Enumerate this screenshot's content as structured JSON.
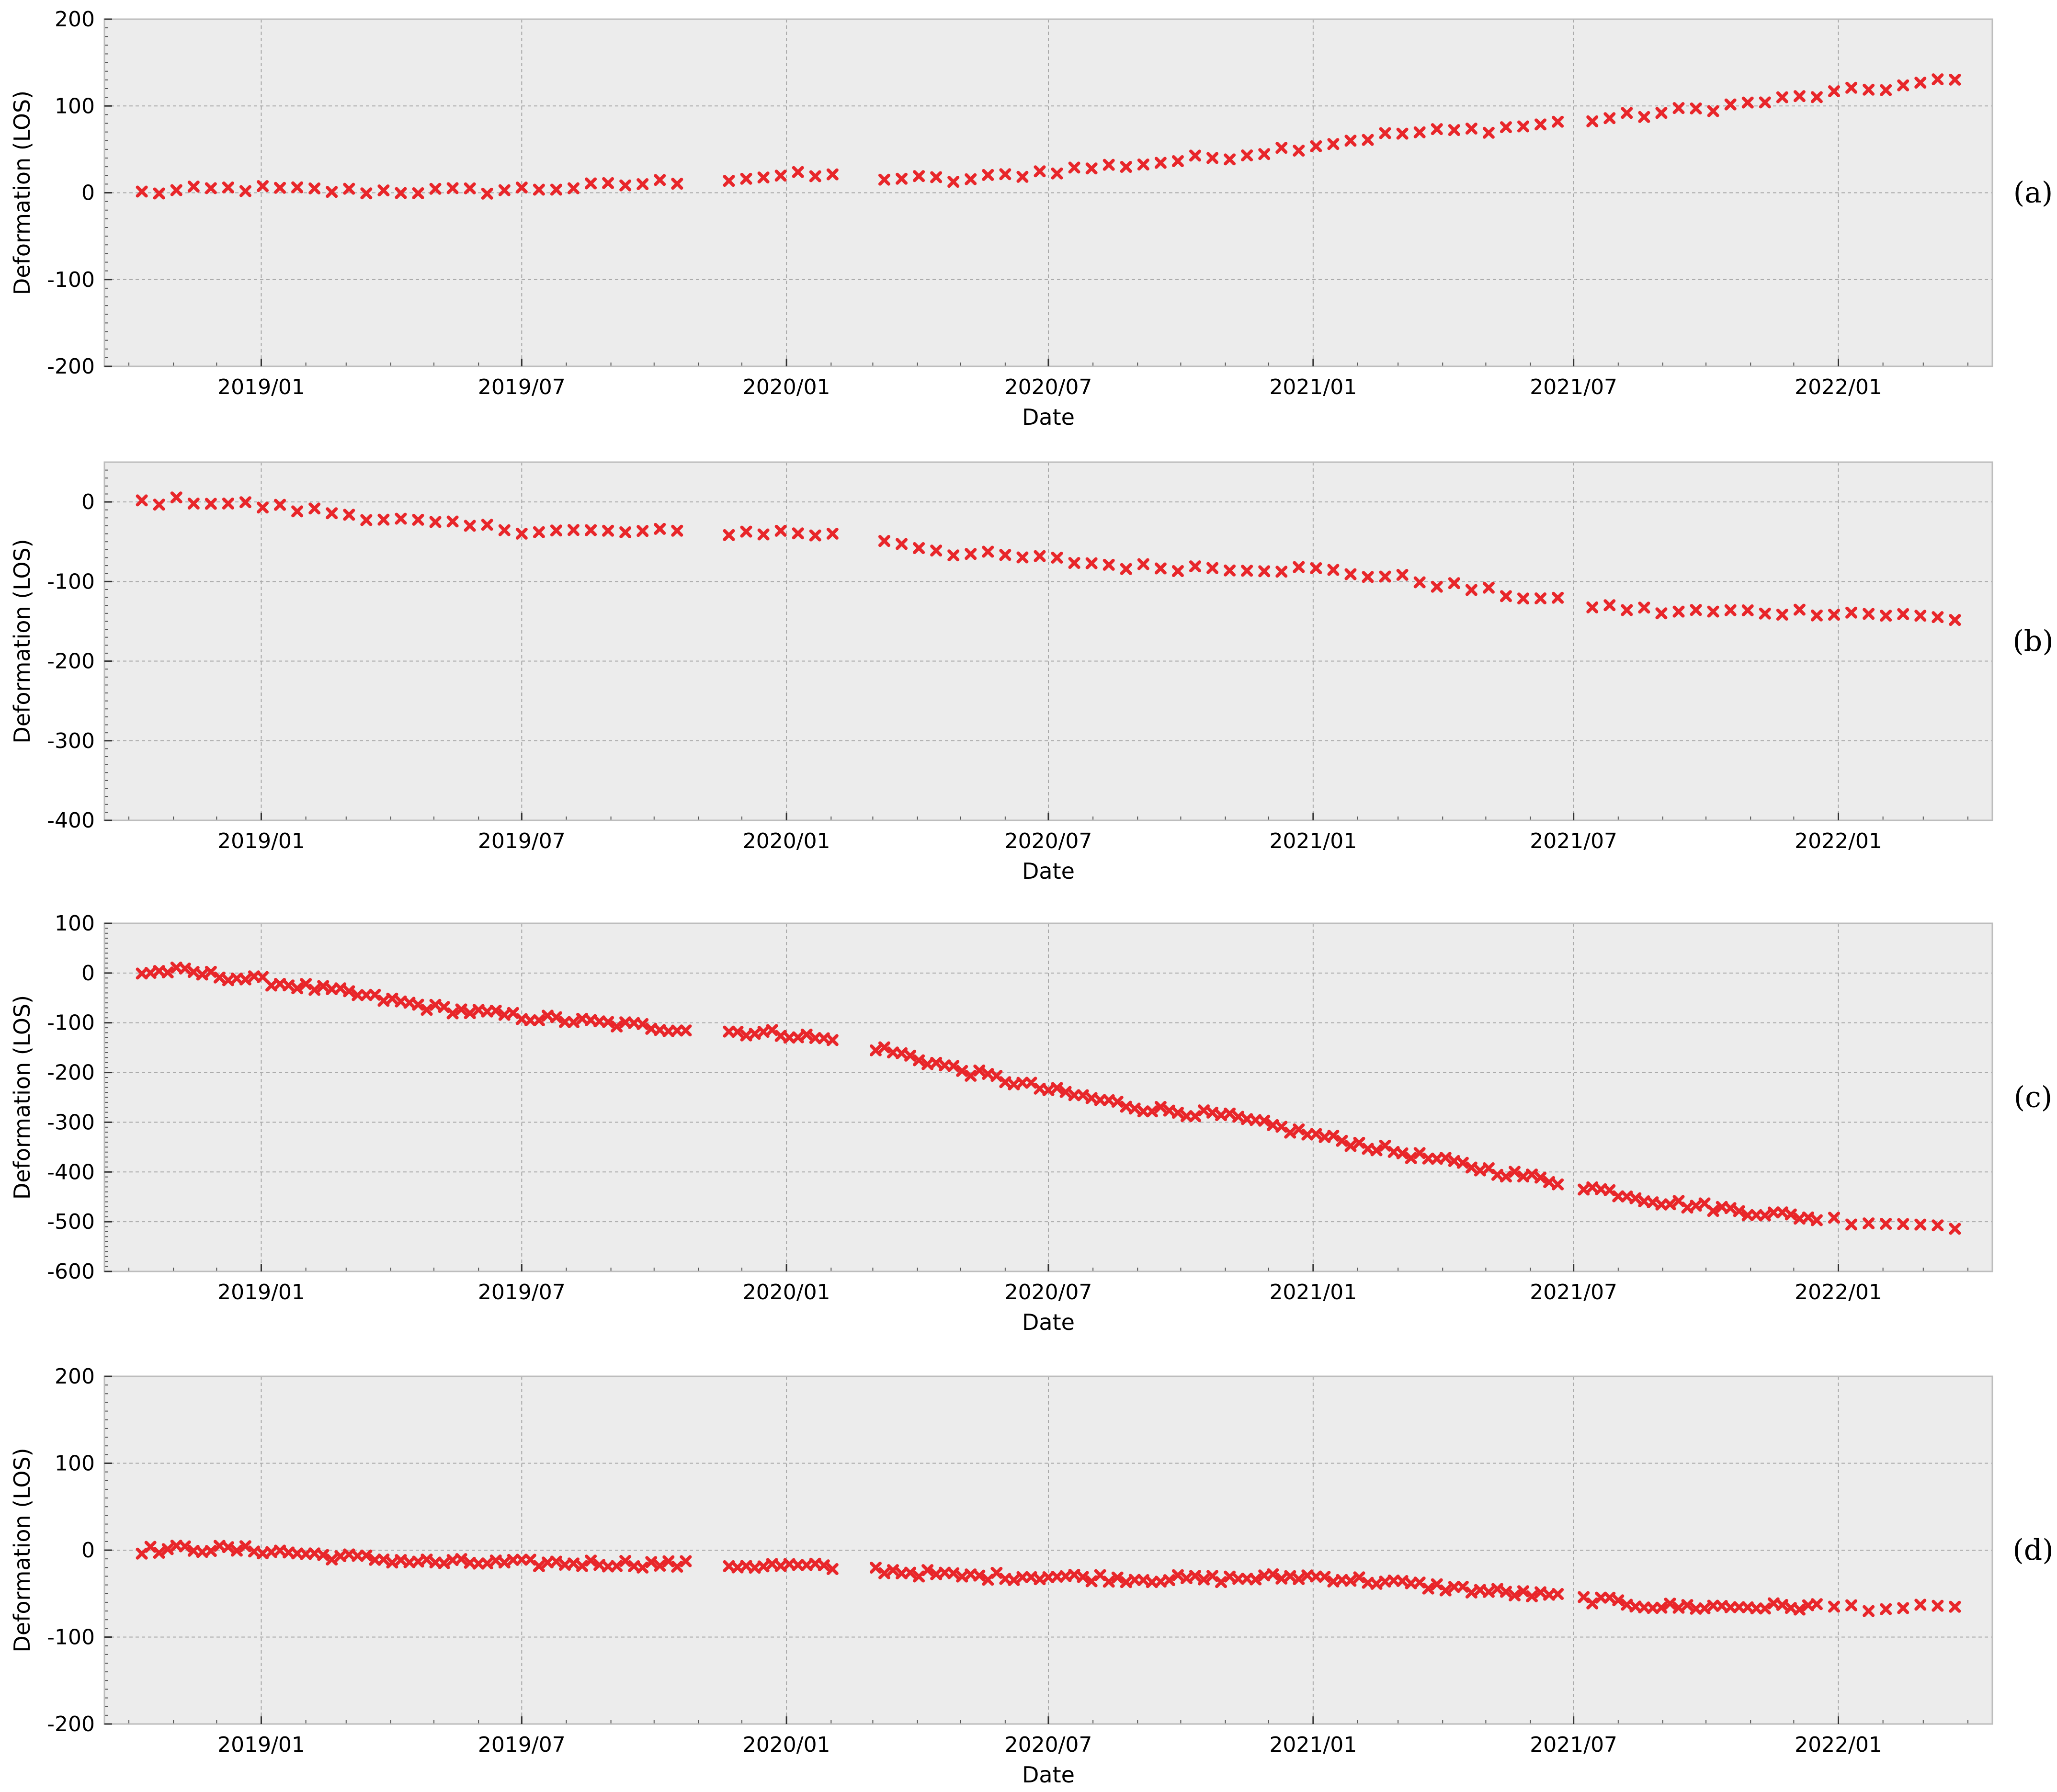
{
  "colors": {
    "plot_background": "#ececec",
    "frame": "#bdbdbd",
    "grid": "#a9a9a9",
    "marker": "#e8262a",
    "text": "#000000"
  },
  "chart_data": [
    {
      "type": "scatter",
      "panel_label": "(a)",
      "xlabel": "Date",
      "ylabel": "Deformation (LOS)",
      "ylim": [
        -200,
        200
      ],
      "yticks": [
        -200,
        -100,
        0,
        100,
        200
      ],
      "xlim": [
        "2018-09-14",
        "2022-04-18"
      ],
      "xticks": [
        "2019/01",
        "2019/07",
        "2020/01",
        "2020/07",
        "2021/01",
        "2021/07",
        "2022/01"
      ],
      "grid": true,
      "marker": "x",
      "keypoints": [
        [
          "2018-10-10",
          0
        ],
        [
          "2018-12-15",
          5
        ],
        [
          "2019-03-01",
          2
        ],
        [
          "2019-06-01",
          2
        ],
        [
          "2019-09-01",
          8
        ],
        [
          "2019-11-01",
          15
        ],
        [
          "2020-01-01",
          20
        ],
        [
          "2020-03-01",
          18
        ],
        [
          "2020-05-01",
          14
        ],
        [
          "2020-07-01",
          25
        ],
        [
          "2020-09-01",
          33
        ],
        [
          "2020-11-01",
          42
        ],
        [
          "2021-01-01",
          55
        ],
        [
          "2021-03-01",
          68
        ],
        [
          "2021-05-01",
          73
        ],
        [
          "2021-07-01",
          82
        ],
        [
          "2021-09-01",
          92
        ],
        [
          "2021-11-01",
          103
        ],
        [
          "2022-01-01",
          115
        ],
        [
          "2022-03-25",
          130
        ]
      ]
    },
    {
      "type": "scatter",
      "panel_label": "(b)",
      "xlabel": "Date",
      "ylabel": "Deformation (LOS)",
      "ylim": [
        -400,
        50
      ],
      "yticks": [
        -400,
        -300,
        -200,
        -100,
        0
      ],
      "xlim": [
        "2018-09-14",
        "2022-04-18"
      ],
      "xticks": [
        "2019/01",
        "2019/07",
        "2020/01",
        "2020/07",
        "2021/01",
        "2021/07",
        "2022/01"
      ],
      "grid": true,
      "marker": "x",
      "keypoints": [
        [
          "2018-10-10",
          0
        ],
        [
          "2018-11-15",
          2
        ],
        [
          "2019-01-01",
          -5
        ],
        [
          "2019-03-01",
          -15
        ],
        [
          "2019-05-01",
          -28
        ],
        [
          "2019-07-01",
          -35
        ],
        [
          "2019-09-01",
          -38
        ],
        [
          "2019-11-01",
          -38
        ],
        [
          "2020-01-01",
          -38
        ],
        [
          "2020-03-01",
          -45
        ],
        [
          "2020-05-01",
          -65
        ],
        [
          "2020-07-01",
          -72
        ],
        [
          "2020-09-01",
          -82
        ],
        [
          "2020-11-01",
          -82
        ],
        [
          "2021-01-01",
          -85
        ],
        [
          "2021-03-01",
          -95
        ],
        [
          "2021-05-01",
          -112
        ],
        [
          "2021-07-01",
          -128
        ],
        [
          "2021-09-01",
          -138
        ],
        [
          "2021-11-01",
          -138
        ],
        [
          "2022-01-01",
          -138
        ],
        [
          "2022-03-25",
          -147
        ]
      ]
    },
    {
      "type": "scatter",
      "panel_label": "(c)",
      "xlabel": "Date",
      "ylabel": "Deformation (LOS)",
      "ylim": [
        -600,
        100
      ],
      "yticks": [
        -600,
        -500,
        -400,
        -300,
        -200,
        -100,
        0,
        100
      ],
      "xlim": [
        "2018-09-14",
        "2022-04-18"
      ],
      "xticks": [
        "2019/01",
        "2019/07",
        "2020/01",
        "2020/07",
        "2021/01",
        "2021/07",
        "2022/01"
      ],
      "grid": true,
      "marker": "x",
      "keypoints": [
        [
          "2018-10-10",
          0
        ],
        [
          "2018-11-01",
          5
        ],
        [
          "2019-01-01",
          -15
        ],
        [
          "2019-03-01",
          -40
        ],
        [
          "2019-05-01",
          -70
        ],
        [
          "2019-07-01",
          -88
        ],
        [
          "2019-09-01",
          -102
        ],
        [
          "2019-11-01",
          -115
        ],
        [
          "2020-01-01",
          -122
        ],
        [
          "2020-03-01",
          -148
        ],
        [
          "2020-05-01",
          -195
        ],
        [
          "2020-07-01",
          -235
        ],
        [
          "2020-09-01",
          -270
        ],
        [
          "2020-11-01",
          -288
        ],
        [
          "2021-01-01",
          -325
        ],
        [
          "2021-03-01",
          -360
        ],
        [
          "2021-05-01",
          -395
        ],
        [
          "2021-07-01",
          -425
        ],
        [
          "2021-09-01",
          -460
        ],
        [
          "2021-11-01",
          -480
        ],
        [
          "2022-01-01",
          -497
        ],
        [
          "2022-03-25",
          -508
        ]
      ]
    },
    {
      "type": "scatter",
      "panel_label": "(d)",
      "xlabel": "Date",
      "ylabel": "Deformation (LOS)",
      "ylim": [
        -200,
        200
      ],
      "yticks": [
        -200,
        -100,
        0,
        100,
        200
      ],
      "xlim": [
        "2018-09-14",
        "2022-04-18"
      ],
      "xticks": [
        "2019/01",
        "2019/07",
        "2020/01",
        "2020/07",
        "2021/01",
        "2021/07",
        "2022/01"
      ],
      "grid": true,
      "marker": "x",
      "keypoints": [
        [
          "2018-10-10",
          0
        ],
        [
          "2018-11-15",
          2
        ],
        [
          "2019-01-01",
          0
        ],
        [
          "2019-03-01",
          -8
        ],
        [
          "2019-05-01",
          -14
        ],
        [
          "2019-07-01",
          -15
        ],
        [
          "2019-09-01",
          -15
        ],
        [
          "2019-11-01",
          -17
        ],
        [
          "2020-01-01",
          -18
        ],
        [
          "2020-03-01",
          -22
        ],
        [
          "2020-05-01",
          -30
        ],
        [
          "2020-07-01",
          -30
        ],
        [
          "2020-09-01",
          -33
        ],
        [
          "2020-11-01",
          -33
        ],
        [
          "2021-01-01",
          -30
        ],
        [
          "2021-03-01",
          -38
        ],
        [
          "2021-05-01",
          -47
        ],
        [
          "2021-07-01",
          -55
        ],
        [
          "2021-09-01",
          -65
        ],
        [
          "2021-11-01",
          -65
        ],
        [
          "2022-01-01",
          -65
        ],
        [
          "2022-03-25",
          -68
        ]
      ]
    }
  ]
}
